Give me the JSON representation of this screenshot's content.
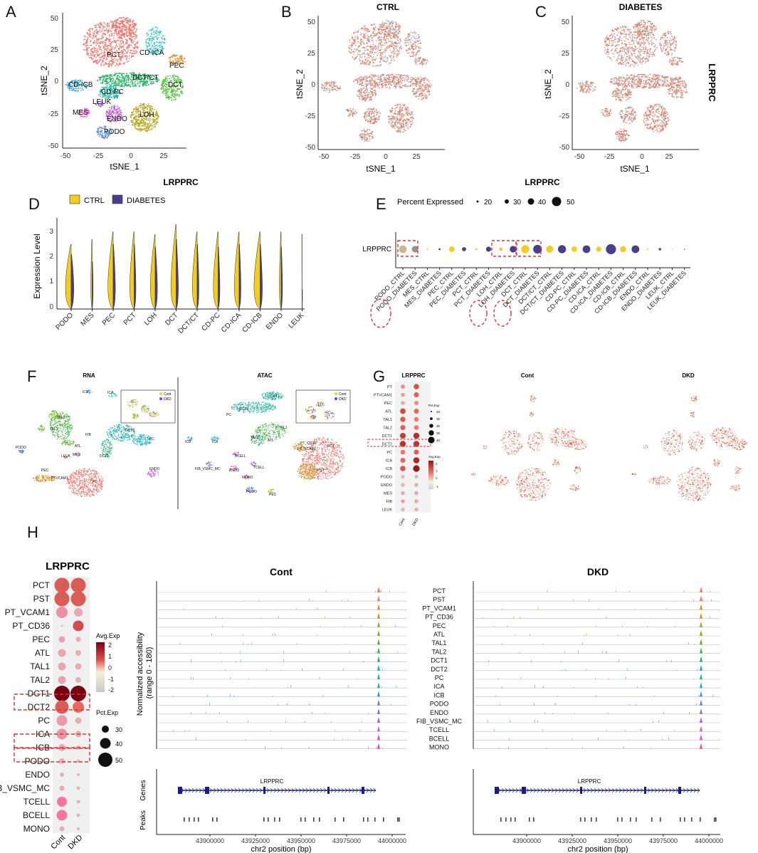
{
  "panel_labels": {
    "A": "A",
    "B": "B",
    "C": "C",
    "D": "D",
    "E": "E",
    "F": "F",
    "G": "G",
    "H": "H"
  },
  "colors": {
    "ctrl": "#f2cc1e",
    "diabetes": "#4b3f8c",
    "grey": "#b8b8b8",
    "coral": "#e8755a",
    "red_box": "#e03030"
  },
  "panel_A": {
    "xlabel": "tSNE_1",
    "ylabel": "tSNE_2",
    "xticks": [
      "-50",
      "-25",
      "0",
      "25"
    ],
    "yticks": [
      "50",
      "25",
      "0",
      "-25",
      "-50"
    ],
    "clusters": [
      {
        "name": "PCT",
        "color": "#f0736a"
      },
      {
        "name": "CD-ICA",
        "color": "#36c4c4"
      },
      {
        "name": "PEC",
        "color": "#e08a20"
      },
      {
        "name": "DCT/CT",
        "color": "#2fb36a"
      },
      {
        "name": "DCT",
        "color": "#52c23c"
      },
      {
        "name": "CD-ICB",
        "color": "#2ea7d8"
      },
      {
        "name": "CD-PC",
        "color": "#1fb59a"
      },
      {
        "name": "LEUK",
        "color": "#a55ad9"
      },
      {
        "name": "MES",
        "color": "#e45ad0"
      },
      {
        "name": "ENDO",
        "color": "#c45ae0"
      },
      {
        "name": "LOH",
        "color": "#b8a722"
      },
      {
        "name": "PODO",
        "color": "#5b8de0"
      }
    ]
  },
  "panel_B": {
    "title": "CTRL",
    "xlabel": "tSNE_1",
    "ylabel": "tSNE_2",
    "xticks": [
      "-50",
      "-25",
      "0",
      "25"
    ],
    "yticks": [
      "50",
      "25",
      "0",
      "-25",
      "-50"
    ]
  },
  "panel_C": {
    "title": "DIABETES",
    "xlabel": "tSNE_1",
    "ylabel": "tSNE_2",
    "side_label": "LRPPRC",
    "xticks": [
      "-50",
      "-25",
      "0",
      "25"
    ],
    "yticks": [
      "50",
      "25",
      "0",
      "-25",
      "-50"
    ]
  },
  "panel_D": {
    "title": "LRPPRC",
    "ylabel": "Expression Level",
    "legend": [
      "CTRL",
      "DIABETES"
    ],
    "yticks": [
      "3",
      "2",
      "1",
      "0"
    ],
    "categories": [
      "PODO",
      "MES",
      "PEC",
      "PCT",
      "LOH",
      "DCT",
      "DCT/CT",
      "CD-PC",
      "CD-ICA",
      "CD-ICB",
      "ENDO",
      "LEUK"
    ]
  },
  "panel_E": {
    "title": "LRPPRC",
    "legend_title": "Percent Expressed",
    "legend_sizes": [
      "20",
      "30",
      "40",
      "50"
    ],
    "row_label": "LRPPRC",
    "categories": [
      "PODO_CTRL",
      "PODO_DIABETES",
      "MES_CTRL",
      "MES_DIABETES",
      "PEC_CTRL",
      "PEC_DIABETES",
      "PCT_CTRL",
      "PCT_DIABETES",
      "LOH_CTRL",
      "LOH_DIABETES",
      "DCT_CTRL",
      "DCT_DIABETES",
      "DCT/CT_CTRL",
      "DCT/CT_DIABETES",
      "CD-PC_CTRL",
      "CD-PC_DIABETES",
      "CD-ICA_CTRL",
      "CD-ICA_DIABETES",
      "CD-ICB_CTRL",
      "CD-ICB_DIABETES",
      "ENDO_CTRL",
      "ENDO_DIABETES",
      "LEUK_CTRL",
      "LEUK_DIABETES"
    ],
    "percent": [
      38,
      34,
      14,
      16,
      30,
      24,
      16,
      28,
      22,
      34,
      40,
      42,
      36,
      40,
      30,
      38,
      28,
      48,
      32,
      38,
      14,
      18,
      10,
      8
    ]
  },
  "panel_F": {
    "rna_title": "RNA",
    "atac_title": "ATAC",
    "legend": [
      "Cont",
      "DKD"
    ],
    "rna_labels": [
      "ICB",
      "ICA",
      "TAL2",
      "TAL1",
      "FIB",
      "ATL",
      "DCT2",
      "PC",
      "DCT1",
      "PODO",
      "LEUK",
      "MES",
      "ENDO",
      "PEC",
      "PTVCAM1",
      "PT"
    ],
    "atac_labels": [
      "DCT2",
      "DCT1",
      "PC",
      "ICB",
      "ICA",
      "TAL1",
      "TAL2",
      "ATL",
      "PT_CD36",
      "PT_VCAM1",
      "PCT",
      "BCELL",
      "FIB_VSMC_MC",
      "ENDO",
      "TCELL",
      "MONO",
      "PST",
      "PODO",
      "PEC"
    ]
  },
  "panel_G": {
    "title": "LRPPRC",
    "cont_title": "Cont",
    "dkd_title": "DKD",
    "rows": [
      "PT",
      "PTVCAM1",
      "PEC",
      "ATL",
      "TAL1",
      "TAL2",
      "DCT1",
      "DCT2",
      "PC",
      "ICA",
      "ICB",
      "PODO",
      "ENDO",
      "MES",
      "FIB",
      "LEUK"
    ],
    "cols": [
      "Cont",
      "DKD"
    ],
    "pct_title": "Pct.Exp",
    "pct_sizes": [
      "20",
      "25",
      "30",
      "35",
      "40"
    ],
    "avg_title": "Avg.Exp",
    "avg_ticks": [
      "2",
      "1",
      "0",
      "-1"
    ],
    "avg_cont": [
      0.1,
      -0.2,
      -0.5,
      1.2,
      1.0,
      0.9,
      1.4,
      1.6,
      0.6,
      0.8,
      1.1,
      -1.0,
      -0.8,
      -0.6,
      -0.4,
      -0.9
    ],
    "avg_dkd": [
      1.1,
      0.9,
      0.2,
      0.8,
      0.5,
      0.6,
      1.6,
      1.5,
      0.9,
      1.7,
      2.0,
      -0.9,
      -0.7,
      -0.5,
      -0.6,
      -0.8
    ]
  },
  "panel_H": {
    "title": "LRPPRC",
    "rows": [
      "PCT",
      "PST",
      "PT_VCAM1",
      "PT_CD36",
      "PEC",
      "ATL",
      "TAL1",
      "TAL2",
      "DCT1",
      "DCT2",
      "PC",
      "ICA",
      "ICB",
      "PODO",
      "ENDO",
      "FIB_VSMC_MC",
      "TCELL",
      "BCELL",
      "MONO"
    ],
    "row_labels_display": [
      "PCT",
      "PST",
      "PT_VCAM1",
      "PT_CD36",
      "PEC",
      "ATL",
      "TAL1",
      "TAL2",
      "DCT1",
      "DCT2",
      "PC",
      "ICA",
      "ICB",
      "PODO",
      "ENDO",
      "B_VSMC_MC",
      "TCELL",
      "BCELL",
      "MONO"
    ],
    "cols": [
      "Cont",
      "DKD"
    ],
    "avg_title": "Avg.Exp",
    "avg_ticks": [
      "2",
      "1",
      "0",
      "-1",
      "-2"
    ],
    "pct_title": "Pct.Exp",
    "pct_sizes": [
      "30",
      "40",
      "50"
    ],
    "avg_cont": [
      1.0,
      1.0,
      0.2,
      -2.0,
      -0.2,
      -0.3,
      -0.3,
      -0.2,
      2.5,
      1.0,
      0.0,
      0.1,
      -0.4,
      -0.5,
      -0.6,
      -0.5,
      0.6,
      0.6,
      -0.6
    ],
    "avg_dkd": [
      1.0,
      1.0,
      -0.4,
      1.2,
      -0.5,
      -0.6,
      -0.5,
      -0.6,
      2.5,
      0.8,
      -0.5,
      -0.6,
      -0.7,
      -0.8,
      -0.8,
      -0.7,
      -0.6,
      -0.7,
      -0.7
    ],
    "pct_cont": [
      48,
      48,
      38,
      8,
      24,
      28,
      28,
      28,
      50,
      44,
      36,
      36,
      26,
      22,
      18,
      20,
      34,
      36,
      20
    ],
    "pct_dkd": [
      48,
      48,
      30,
      36,
      20,
      22,
      24,
      22,
      50,
      38,
      24,
      24,
      18,
      16,
      14,
      16,
      16,
      16,
      14
    ],
    "track_cont_title": "Cont",
    "track_dkd_title": "DKD",
    "track_ylabel": "Normalized accessibility (range 0 - 180)",
    "track_ylabel_line1": "Normalized accessibility",
    "track_ylabel_line2": "(range 0 - 180)",
    "genes_label": "Genes",
    "peaks_label": "Peaks",
    "gene_name": "LRPPRC",
    "xticks": [
      "43900000",
      "43925000",
      "43950000",
      "43975000",
      "44000000"
    ],
    "xlabel": "chr2 position (bp)"
  }
}
